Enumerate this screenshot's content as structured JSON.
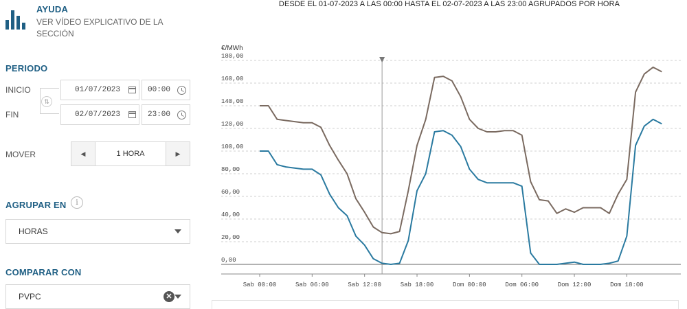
{
  "help": {
    "title": "AYUDA",
    "subtitle": "VER VÍDEO EXPLICATIVO DE LA SECCIÓN"
  },
  "periodo": {
    "title": "PERIODO",
    "inicio_label": "INICIO",
    "inicio_date": "01/07/2023",
    "inicio_time": "00:00",
    "fin_label": "FIN",
    "fin_date": "02/07/2023",
    "fin_time": "23:00"
  },
  "mover": {
    "label": "MOVER",
    "value": "1 HORA",
    "prev": "◀",
    "next": "▶"
  },
  "agrupar": {
    "title": "AGRUPAR EN",
    "info": "i",
    "value": "HORAS"
  },
  "comparar": {
    "title": "COMPARAR CON",
    "value": "PVPC",
    "clear": "✕"
  },
  "colors": {
    "accent": "#1f5f84",
    "series_brown": "#7a6a60",
    "series_blue": "#2a7aa0"
  },
  "chart_data": {
    "type": "line",
    "title": "DESDE EL 01-07-2023 A LAS 00:00 HASTA EL 02-07-2023 A LAS 23:00 AGRUPADOS POR HORA",
    "ylabel": "€/MWh",
    "ylim": [
      -5,
      185
    ],
    "yticks": [
      0,
      20,
      40,
      60,
      80,
      100,
      120,
      140,
      160,
      180
    ],
    "ytick_labels": [
      "0,00",
      "20,00",
      "40,00",
      "60,00",
      "80,00",
      "100,00",
      "120,00",
      "140,00",
      "160,00",
      "180,00"
    ],
    "xlim": [
      0,
      47
    ],
    "xticks": [
      0,
      6,
      12,
      18,
      24,
      30,
      36,
      42
    ],
    "xtick_labels": [
      "Sab 00:00",
      "Sab 06:00",
      "Sab 12:00",
      "Sab 18:00",
      "Dom 00:00",
      "Dom 06:00",
      "Dom 12:00",
      "Dom 18:00"
    ],
    "grid": true,
    "cursor_x": 14,
    "series": [
      {
        "color": "#7a6a60",
        "values": [
          140,
          140,
          128,
          127,
          126,
          125,
          125,
          121,
          105,
          92,
          80,
          58,
          46,
          33,
          28,
          27,
          29,
          65,
          105,
          128,
          165,
          166,
          162,
          148,
          128,
          120,
          117,
          117,
          118,
          118,
          114,
          73,
          57,
          56,
          45,
          49,
          46,
          50,
          50,
          50,
          45,
          62,
          75,
          152,
          168,
          174,
          170
        ]
      },
      {
        "color": "#2a7aa0",
        "values": [
          100,
          100,
          88,
          86,
          85,
          84,
          84,
          79,
          62,
          50,
          43,
          25,
          17,
          5,
          1,
          0,
          1,
          21,
          65,
          80,
          117,
          118,
          114,
          104,
          84,
          75,
          72,
          72,
          72,
          72,
          69,
          10,
          0,
          0,
          0,
          1,
          2,
          0,
          0,
          0,
          1,
          3,
          25,
          105,
          122,
          128,
          124
        ]
      }
    ]
  }
}
